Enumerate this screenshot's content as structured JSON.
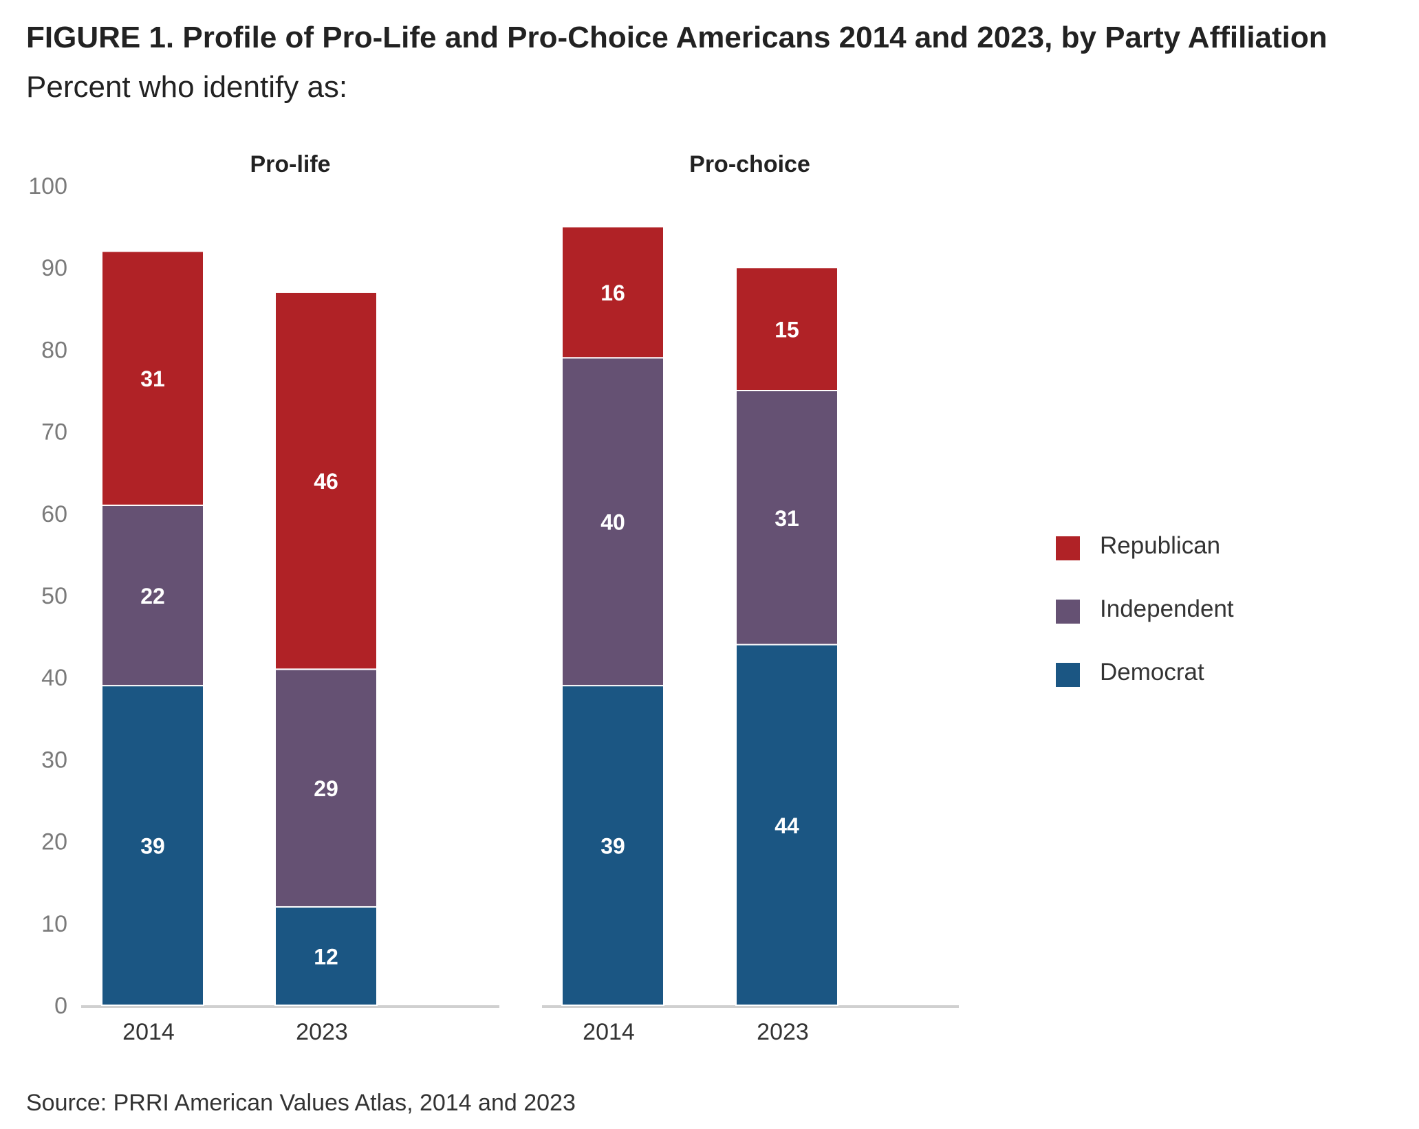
{
  "title": "FIGURE 1. Profile of Pro-Life and Pro-Choice Americans 2014 and 2023, by Party Affiliation",
  "subtitle": "Percent who identify as:",
  "source": "Source: PRRI American Values Atlas, 2014 and 2023",
  "colors": {
    "Democrat": "#1b5683",
    "Independent": "#655173",
    "Republican": "#b02226",
    "axis": "#d0d0d0",
    "tick_text": "#7a7a7a"
  },
  "legend": [
    {
      "label": "Republican",
      "color": "#b02226"
    },
    {
      "label": "Independent",
      "color": "#655173"
    },
    {
      "label": "Democrat",
      "color": "#1b5683"
    }
  ],
  "chart_data": {
    "type": "bar",
    "stacked": true,
    "ylim": [
      0,
      100
    ],
    "yticks": [
      0,
      10,
      20,
      30,
      40,
      50,
      60,
      70,
      80,
      90,
      100
    ],
    "legend_position": "right",
    "grid": false,
    "panels": [
      {
        "title": "Pro-life",
        "categories": [
          "2014",
          "2023"
        ],
        "series": [
          {
            "name": "Democrat",
            "values": [
              39,
              12
            ]
          },
          {
            "name": "Independent",
            "values": [
              22,
              29
            ]
          },
          {
            "name": "Republican",
            "values": [
              31,
              46
            ]
          }
        ]
      },
      {
        "title": "Pro-choice",
        "categories": [
          "2014",
          "2023"
        ],
        "series": [
          {
            "name": "Democrat",
            "values": [
              39,
              44
            ]
          },
          {
            "name": "Independent",
            "values": [
              40,
              31
            ]
          },
          {
            "name": "Republican",
            "values": [
              16,
              15
            ]
          }
        ]
      }
    ]
  }
}
